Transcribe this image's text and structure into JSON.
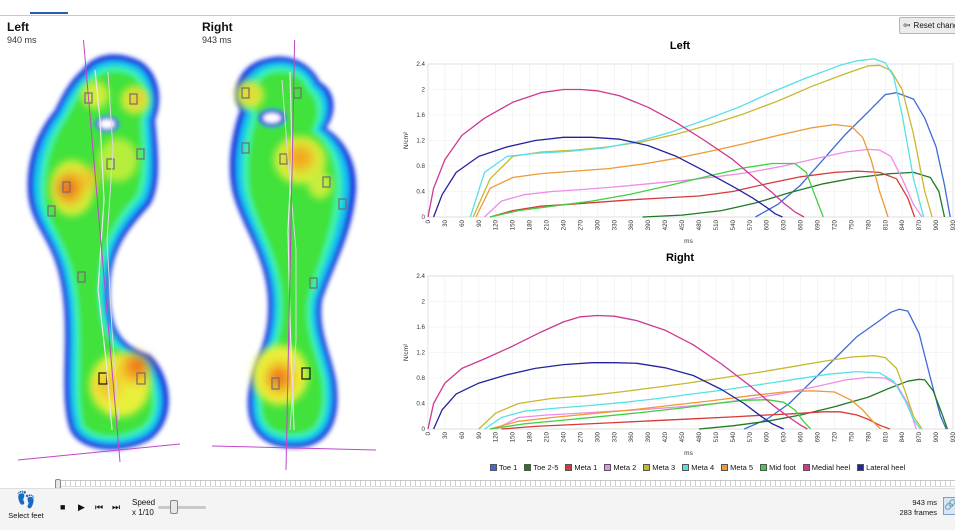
{
  "header": {
    "reset_label": "Reset changes"
  },
  "feet": {
    "left": {
      "title": "Left",
      "duration": "940 ms"
    },
    "right": {
      "title": "Right",
      "duration": "943 ms"
    }
  },
  "colors": {
    "toe1": "#3d6bd6",
    "toe25": "#1f7a25",
    "meta1": "#d63a3a",
    "meta2": "#ef8ce9",
    "meta3": "#c8b830",
    "meta4": "#57e0e6",
    "meta5": "#ee9a35",
    "midfoot": "#3fd03f",
    "medialheel": "#d0388f",
    "lateralheel": "#23239e"
  },
  "chart_data": [
    {
      "type": "line",
      "title": "Left",
      "xlabel": "ms",
      "ylabel": "N/cm²",
      "xlim": [
        0,
        930
      ],
      "ylim": [
        0,
        2.4
      ],
      "yticks": [
        "0",
        "0.4",
        "0.8",
        "1.2",
        "1.6",
        "2",
        "2.4"
      ],
      "xticks": [
        0,
        30,
        60,
        90,
        120,
        150,
        180,
        210,
        240,
        270,
        300,
        330,
        360,
        390,
        420,
        450,
        480,
        510,
        540,
        570,
        600,
        630,
        660,
        690,
        720,
        750,
        780,
        810,
        840,
        870,
        900,
        930
      ],
      "grid": true,
      "series": [
        {
          "name": "Toe 1",
          "key": "toe1",
          "x": [
            580,
            620,
            660,
            700,
            740,
            780,
            810,
            830,
            860,
            880,
            900,
            915,
            925
          ],
          "y": [
            0,
            0.2,
            0.5,
            0.9,
            1.3,
            1.65,
            1.92,
            1.95,
            1.85,
            1.55,
            1.1,
            0.5,
            0
          ]
        },
        {
          "name": "Toe 2-5",
          "key": "toe25",
          "x": [
            380,
            450,
            520,
            580,
            640,
            700,
            760,
            820,
            860,
            890,
            905,
            915
          ],
          "y": [
            0,
            0.03,
            0.1,
            0.22,
            0.38,
            0.52,
            0.62,
            0.68,
            0.7,
            0.62,
            0.4,
            0
          ]
        },
        {
          "name": "Meta 1",
          "key": "meta1",
          "x": [
            110,
            150,
            200,
            250,
            300,
            360,
            420,
            480,
            540,
            600,
            660,
            720,
            760,
            800,
            830,
            850,
            862
          ],
          "y": [
            0,
            0.1,
            0.17,
            0.2,
            0.23,
            0.27,
            0.3,
            0.33,
            0.4,
            0.52,
            0.63,
            0.7,
            0.72,
            0.7,
            0.6,
            0.3,
            0
          ]
        },
        {
          "name": "Meta 2",
          "key": "meta2",
          "x": [
            100,
            130,
            170,
            220,
            270,
            330,
            390,
            450,
            510,
            570,
            630,
            690,
            740,
            780,
            800,
            820,
            840,
            860,
            875
          ],
          "y": [
            0,
            0.25,
            0.35,
            0.4,
            0.43,
            0.47,
            0.52,
            0.57,
            0.63,
            0.7,
            0.8,
            0.92,
            1.02,
            1.06,
            1.05,
            0.95,
            0.6,
            0.2,
            0
          ]
        },
        {
          "name": "Meta 3",
          "key": "meta3",
          "x": [
            80,
            110,
            150,
            200,
            260,
            320,
            380,
            440,
            500,
            560,
            620,
            680,
            740,
            780,
            800,
            820,
            840,
            860,
            880,
            893
          ],
          "y": [
            0,
            0.6,
            0.95,
            1.02,
            1.05,
            1.1,
            1.18,
            1.3,
            1.45,
            1.62,
            1.82,
            2.05,
            2.25,
            2.37,
            2.38,
            2.3,
            2.0,
            1.3,
            0.4,
            0
          ]
        },
        {
          "name": "Meta 4",
          "key": "meta4",
          "x": [
            75,
            100,
            140,
            190,
            250,
            310,
            370,
            430,
            490,
            550,
            610,
            670,
            730,
            760,
            790,
            810,
            825,
            840,
            860,
            878
          ],
          "y": [
            0,
            0.7,
            0.95,
            1.0,
            1.03,
            1.08,
            1.18,
            1.33,
            1.52,
            1.72,
            1.96,
            2.18,
            2.38,
            2.45,
            2.48,
            2.42,
            2.2,
            1.6,
            0.6,
            0
          ]
        },
        {
          "name": "Meta 5",
          "key": "meta5",
          "x": [
            85,
            110,
            150,
            200,
            260,
            320,
            380,
            440,
            500,
            560,
            620,
            680,
            720,
            750,
            770,
            785,
            800,
            815
          ],
          "y": [
            0,
            0.45,
            0.62,
            0.68,
            0.72,
            0.76,
            0.83,
            0.92,
            1.03,
            1.15,
            1.28,
            1.4,
            1.45,
            1.42,
            1.25,
            0.9,
            0.4,
            0
          ]
        },
        {
          "name": "Mid foot",
          "key": "midfoot",
          "x": [
            110,
            160,
            220,
            290,
            360,
            430,
            500,
            560,
            610,
            650,
            670,
            685,
            700
          ],
          "y": [
            0,
            0.1,
            0.17,
            0.25,
            0.36,
            0.5,
            0.65,
            0.77,
            0.84,
            0.84,
            0.7,
            0.35,
            0
          ]
        },
        {
          "name": "Medial heel",
          "key": "medialheel",
          "x": [
            0,
            10,
            30,
            60,
            100,
            150,
            200,
            240,
            270,
            300,
            340,
            390,
            440,
            490,
            540,
            580,
            610,
            630,
            650,
            666
          ],
          "y": [
            0,
            0.45,
            0.9,
            1.28,
            1.55,
            1.8,
            1.95,
            2.0,
            2.0,
            1.98,
            1.9,
            1.72,
            1.48,
            1.2,
            0.9,
            0.6,
            0.38,
            0.22,
            0.08,
            0
          ]
        },
        {
          "name": "Lateral heel",
          "key": "lateralheel",
          "x": [
            10,
            25,
            50,
            90,
            140,
            190,
            240,
            290,
            340,
            390,
            440,
            490,
            540,
            575,
            600,
            615,
            628
          ],
          "y": [
            0,
            0.35,
            0.7,
            0.95,
            1.1,
            1.2,
            1.25,
            1.25,
            1.22,
            1.12,
            0.95,
            0.72,
            0.48,
            0.3,
            0.15,
            0.05,
            0
          ]
        }
      ]
    },
    {
      "type": "line",
      "title": "Right",
      "xlabel": "ms",
      "ylabel": "N/cm²",
      "xlim": [
        0,
        930
      ],
      "ylim": [
        0,
        2.4
      ],
      "yticks": [
        "0",
        "0.4",
        "0.8",
        "1.2",
        "1.6",
        "2",
        "2.4"
      ],
      "xticks": [
        0,
        30,
        60,
        90,
        120,
        150,
        180,
        210,
        240,
        270,
        300,
        330,
        360,
        390,
        420,
        450,
        480,
        510,
        540,
        570,
        600,
        630,
        660,
        690,
        720,
        750,
        780,
        810,
        840,
        870,
        900,
        930
      ],
      "grid": true,
      "series": [
        {
          "name": "Toe 1",
          "key": "toe1",
          "x": [
            560,
            600,
            640,
            680,
            720,
            760,
            800,
            820,
            835,
            850,
            870,
            890,
            908,
            918
          ],
          "y": [
            0,
            0.15,
            0.4,
            0.75,
            1.1,
            1.45,
            1.7,
            1.83,
            1.88,
            1.85,
            1.5,
            0.8,
            0.2,
            0
          ]
        },
        {
          "name": "Toe 2-5",
          "key": "toe25",
          "x": [
            480,
            540,
            600,
            660,
            720,
            780,
            820,
            850,
            870,
            880,
            895,
            910,
            920
          ],
          "y": [
            0,
            0.05,
            0.12,
            0.22,
            0.35,
            0.5,
            0.65,
            0.75,
            0.78,
            0.77,
            0.6,
            0.25,
            0
          ]
        },
        {
          "name": "Meta 1",
          "key": "meta1",
          "x": [
            130,
            190,
            260,
            330,
            400,
            470,
            540,
            600,
            650,
            700,
            730,
            760,
            780,
            800,
            818
          ],
          "y": [
            0,
            0.04,
            0.07,
            0.1,
            0.13,
            0.16,
            0.19,
            0.22,
            0.24,
            0.27,
            0.27,
            0.22,
            0.15,
            0.06,
            0
          ]
        },
        {
          "name": "Meta 2",
          "key": "meta2",
          "x": [
            120,
            160,
            210,
            270,
            330,
            390,
            450,
            510,
            570,
            630,
            690,
            740,
            780,
            810,
            830,
            850,
            865
          ],
          "y": [
            0,
            0.18,
            0.22,
            0.25,
            0.28,
            0.31,
            0.35,
            0.4,
            0.47,
            0.56,
            0.67,
            0.77,
            0.81,
            0.8,
            0.7,
            0.4,
            0
          ]
        },
        {
          "name": "Meta 3",
          "key": "meta3",
          "x": [
            90,
            120,
            160,
            220,
            280,
            340,
            400,
            460,
            520,
            580,
            640,
            700,
            750,
            790,
            810,
            830,
            845,
            860,
            875
          ],
          "y": [
            0,
            0.25,
            0.4,
            0.48,
            0.52,
            0.58,
            0.65,
            0.72,
            0.8,
            0.88,
            0.97,
            1.06,
            1.13,
            1.15,
            1.12,
            0.95,
            0.6,
            0.2,
            0
          ]
        },
        {
          "name": "Meta 4",
          "key": "meta4",
          "x": [
            100,
            130,
            170,
            230,
            290,
            350,
            410,
            470,
            530,
            590,
            650,
            710,
            760,
            800,
            825,
            845,
            860,
            872
          ],
          "y": [
            0,
            0.18,
            0.28,
            0.33,
            0.37,
            0.42,
            0.48,
            0.55,
            0.62,
            0.7,
            0.78,
            0.86,
            0.9,
            0.88,
            0.75,
            0.45,
            0.15,
            0
          ]
        },
        {
          "name": "Meta 5",
          "key": "meta5",
          "x": [
            110,
            160,
            220,
            290,
            360,
            430,
            500,
            570,
            630,
            680,
            720,
            750,
            770,
            790,
            802
          ],
          "y": [
            0,
            0.12,
            0.18,
            0.24,
            0.3,
            0.37,
            0.44,
            0.52,
            0.58,
            0.6,
            0.58,
            0.45,
            0.3,
            0.1,
            0
          ]
        },
        {
          "name": "Mid foot",
          "key": "midfoot",
          "x": [
            110,
            170,
            240,
            310,
            380,
            450,
            510,
            560,
            600,
            630,
            650,
            665,
            678
          ],
          "y": [
            0,
            0.08,
            0.14,
            0.2,
            0.26,
            0.33,
            0.4,
            0.45,
            0.46,
            0.42,
            0.3,
            0.12,
            0
          ]
        },
        {
          "name": "Medial heel",
          "key": "medialheel",
          "x": [
            0,
            10,
            30,
            60,
            100,
            150,
            200,
            240,
            270,
            300,
            330,
            370,
            420,
            470,
            520,
            570,
            610,
            640,
            660,
            672
          ],
          "y": [
            0,
            0.4,
            0.72,
            0.95,
            1.1,
            1.3,
            1.52,
            1.68,
            1.76,
            1.78,
            1.77,
            1.7,
            1.55,
            1.32,
            1.02,
            0.68,
            0.38,
            0.18,
            0.06,
            0
          ]
        },
        {
          "name": "Lateral heel",
          "key": "lateralheel",
          "x": [
            10,
            25,
            50,
            90,
            140,
            190,
            240,
            290,
            330,
            370,
            420,
            470,
            520,
            560,
            590,
            610,
            630
          ],
          "y": [
            0,
            0.3,
            0.55,
            0.72,
            0.85,
            0.95,
            1.01,
            1.04,
            1.04,
            1.03,
            0.96,
            0.84,
            0.62,
            0.4,
            0.2,
            0.08,
            0
          ]
        }
      ]
    }
  ],
  "legend": [
    {
      "label": "Toe 1",
      "key": "toe1"
    },
    {
      "label": "Toe 2-5",
      "key": "toe25"
    },
    {
      "label": "Meta 1",
      "key": "meta1"
    },
    {
      "label": "Meta 2",
      "key": "meta2"
    },
    {
      "label": "Meta 3",
      "key": "meta3"
    },
    {
      "label": "Meta 4",
      "key": "meta4"
    },
    {
      "label": "Meta 5",
      "key": "meta5"
    },
    {
      "label": "Mid foot",
      "key": "midfoot"
    },
    {
      "label": "Medial heel",
      "key": "medialheel"
    },
    {
      "label": "Lateral heel",
      "key": "lateralheel"
    }
  ],
  "controls": {
    "select_feet_label": "Select feet",
    "feet_icon": "feet-icon",
    "stop_icon": "■",
    "play_icon": "▶",
    "prev_icon": "⏮",
    "next_icon": "⏭",
    "speed_label": "Speed",
    "speed_value": "x 1/10",
    "speed_fraction": 0.3,
    "timeline_position": 0.0,
    "duration": "943 ms",
    "frames": "283 frames"
  }
}
